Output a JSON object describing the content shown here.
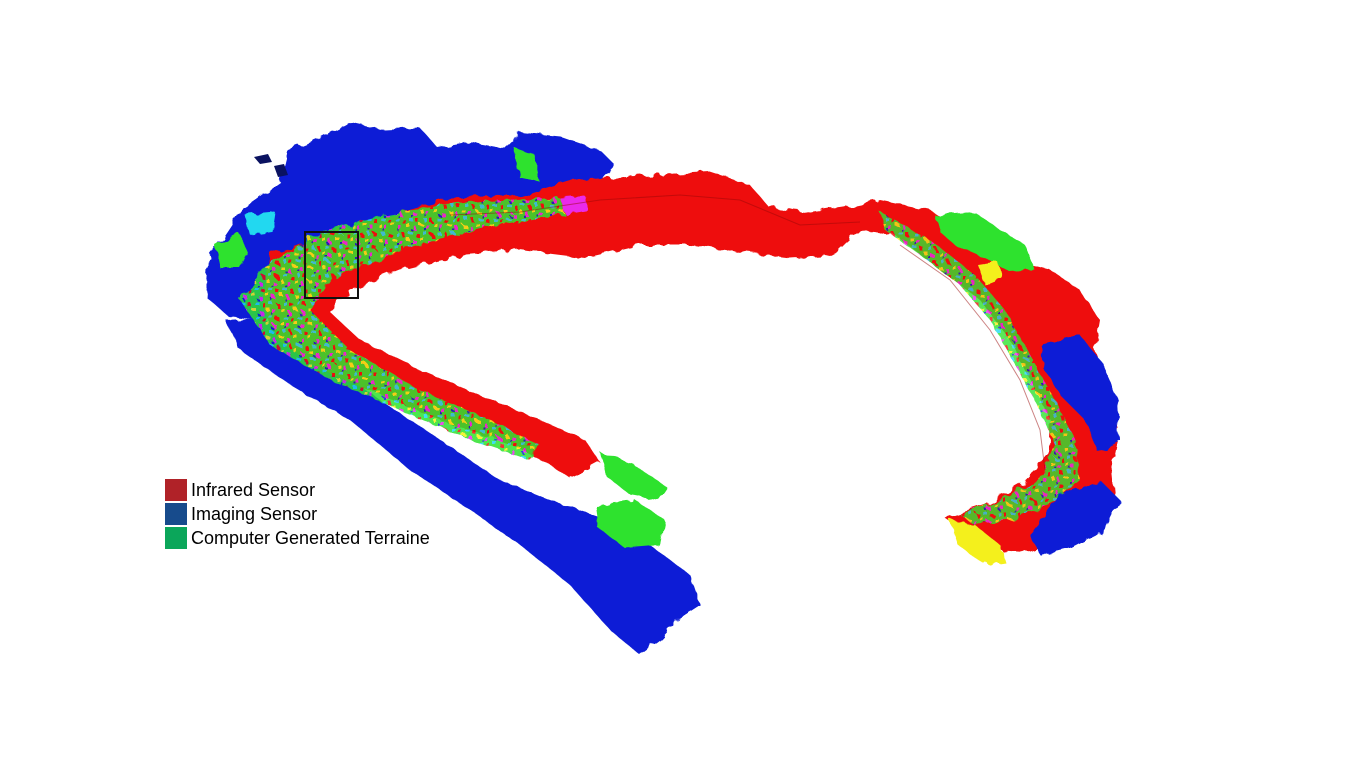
{
  "colors": {
    "infrared": "#ee0f0f",
    "imaging": "#0a1fd6",
    "terrain": "#2fe22f",
    "cyan": "#20d8f0",
    "yellow": "#f4f01a",
    "magenta": "#ea2aea",
    "dark_red": "#9a0808"
  },
  "legend": {
    "items": [
      {
        "label": "Infrared Sensor",
        "color": "#b02228"
      },
      {
        "label": "Imaging Sensor",
        "color": "#174b8c"
      },
      {
        "label": "Computer Generated Terraine",
        "color": "#0ba65a"
      }
    ]
  }
}
